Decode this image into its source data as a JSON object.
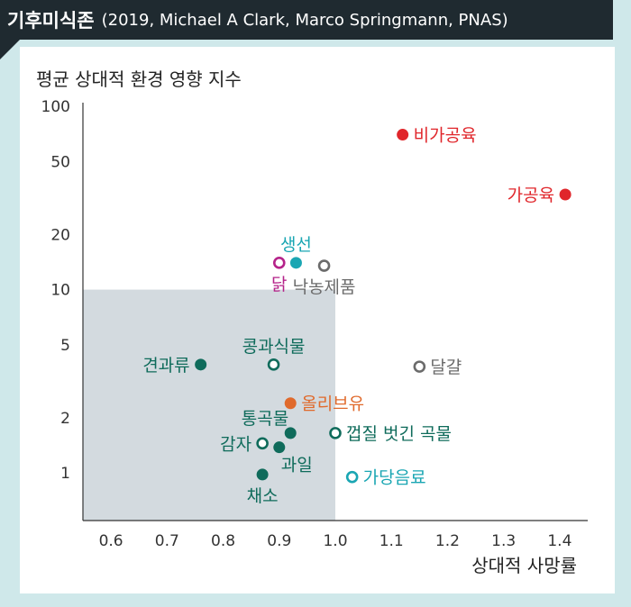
{
  "header": {
    "title": "기후미식존",
    "subtitle": "(2019, Michael A Clark, Marco Springmann, PNAS)"
  },
  "colors": {
    "red": "#e0262b",
    "cyan": "#1aa6b3",
    "magenta": "#b5238a",
    "gray": "#6b6b6b",
    "green": "#0f6b5b",
    "orange": "#e06a2c",
    "zone": "#d3dadf"
  },
  "chart_data": {
    "type": "scatter",
    "ylabel": "평균 상대적 환경 영향 지수",
    "xlabel": "상대적 사망률",
    "xlim": [
      0.55,
      1.45
    ],
    "ylim": [
      0.55,
      100
    ],
    "y_scale": "log",
    "x_ticks": [
      "0.6",
      "0.7",
      "0.8",
      "0.9",
      "1.0",
      "1.1",
      "1.2",
      "1.3",
      "1.4"
    ],
    "y_ticks": [
      "100",
      "50",
      "20",
      "10",
      "5",
      "2",
      "1"
    ],
    "zone": {
      "x_max": 1.0,
      "y_max": 10
    },
    "points": [
      {
        "label": "비가공육",
        "x": 1.12,
        "y": 70,
        "color": "red",
        "filled": true,
        "label_pos": "right"
      },
      {
        "label": "가공육",
        "x": 1.41,
        "y": 33,
        "color": "red",
        "filled": true,
        "label_pos": "left"
      },
      {
        "label": "생선",
        "x": 0.93,
        "y": 14,
        "color": "cyan",
        "filled": true,
        "label_pos": "top"
      },
      {
        "label": "닭",
        "x": 0.9,
        "y": 14,
        "color": "magenta",
        "filled": false,
        "label_pos": "bottom"
      },
      {
        "label": "낙농제품",
        "x": 0.98,
        "y": 13.5,
        "color": "gray",
        "filled": false,
        "label_pos": "bottom"
      },
      {
        "label": "콩과식물",
        "x": 0.89,
        "y": 3.9,
        "color": "green",
        "filled": false,
        "label_pos": "top"
      },
      {
        "label": "견과류",
        "x": 0.76,
        "y": 3.9,
        "color": "green",
        "filled": true,
        "label_pos": "left"
      },
      {
        "label": "달걀",
        "x": 1.15,
        "y": 3.8,
        "color": "gray",
        "filled": false,
        "label_pos": "right"
      },
      {
        "label": "올리브유",
        "x": 0.92,
        "y": 2.4,
        "color": "orange",
        "filled": true,
        "label_pos": "right"
      },
      {
        "label": "통곡물",
        "x": 0.92,
        "y": 1.65,
        "color": "green",
        "filled": true,
        "label_pos": "topleft"
      },
      {
        "label": "껍질 벗긴 곡물",
        "x": 1.0,
        "y": 1.65,
        "color": "green",
        "filled": false,
        "label_pos": "right"
      },
      {
        "label": "감자",
        "x": 0.87,
        "y": 1.45,
        "color": "green",
        "filled": false,
        "label_pos": "left"
      },
      {
        "label": "과일",
        "x": 0.9,
        "y": 1.38,
        "color": "green",
        "filled": true,
        "label_pos": "bottomright"
      },
      {
        "label": "가당음료",
        "x": 1.03,
        "y": 0.95,
        "color": "cyan",
        "filled": false,
        "label_pos": "right"
      },
      {
        "label": "채소",
        "x": 0.87,
        "y": 0.98,
        "color": "green",
        "filled": true,
        "label_pos": "bottom"
      }
    ]
  }
}
